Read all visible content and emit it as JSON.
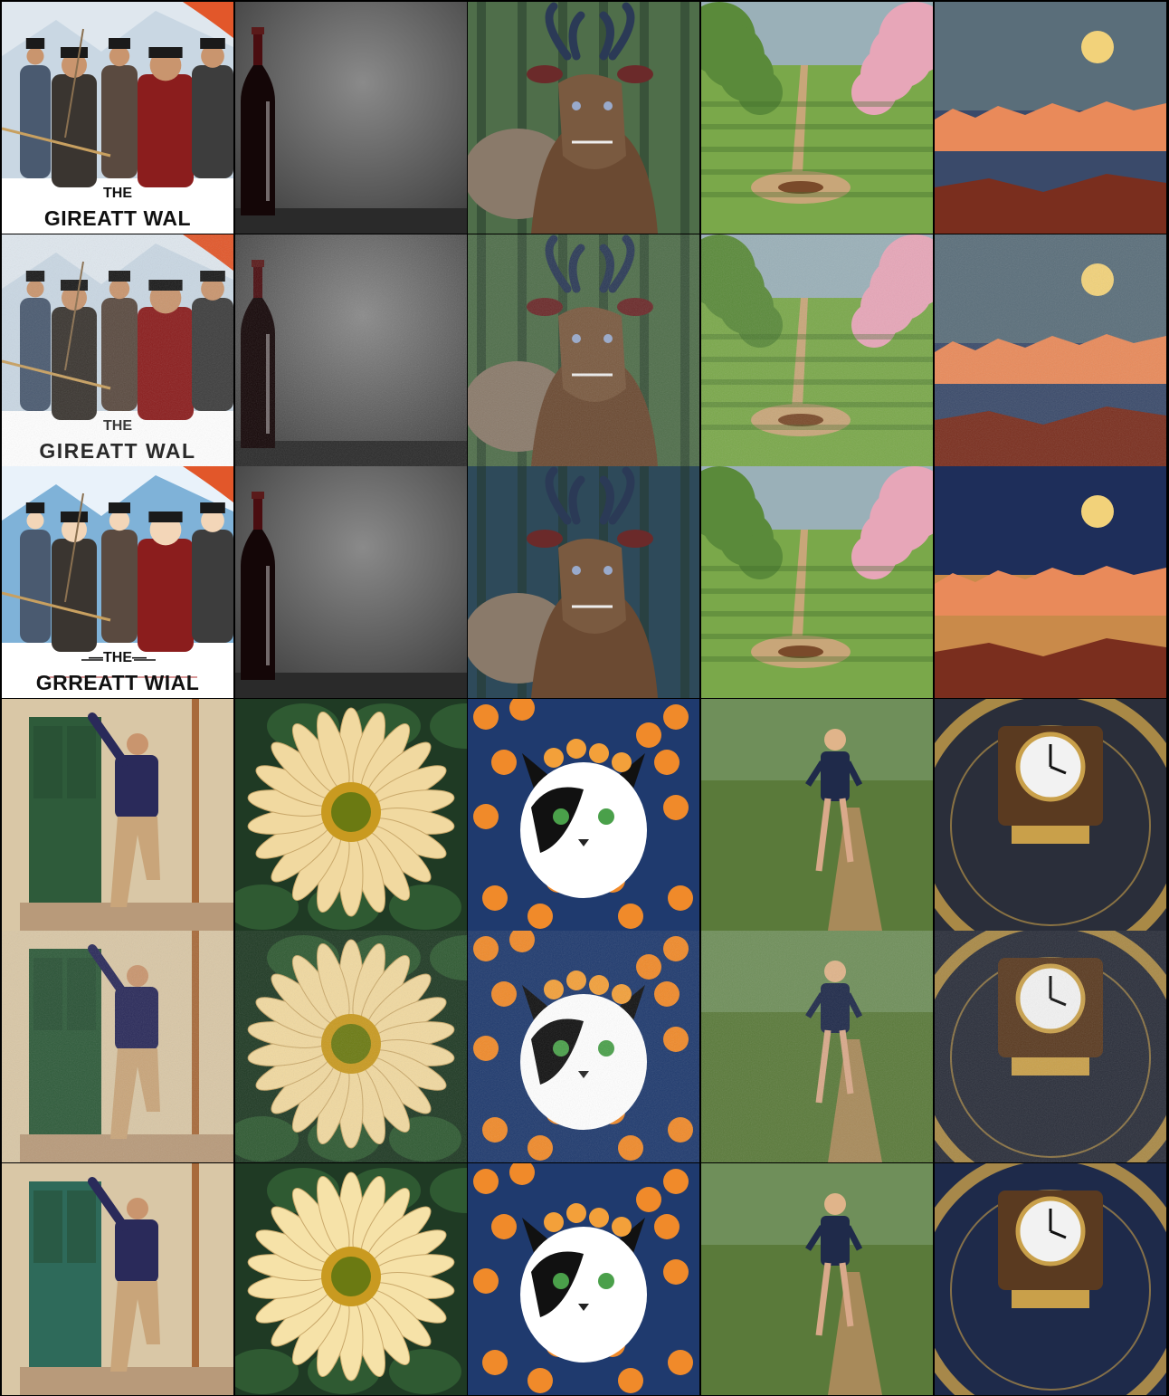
{
  "grid": {
    "rows": 6,
    "cols": 5,
    "background": "#000000"
  },
  "posters": [
    {
      "the": "THE",
      "title": "GIREATT WAL",
      "style": "clean"
    },
    {
      "the": "THE",
      "title": "GIREATT WAL",
      "style": "noisy"
    },
    {
      "the": "—THE—",
      "title": "GRREATT WIAL",
      "style": "anime"
    }
  ],
  "scenes": {
    "warriors-poster": {
      "subject": "armored warriors film poster",
      "palette": [
        "#c9d7e3",
        "#8b1d1d",
        "#2b2b2b",
        "#f2f2f2"
      ]
    },
    "wine-bottle": {
      "subject": "red wine bottle on grey textured background",
      "palette": [
        "#6e6e6e",
        "#3a3a3a",
        "#4a0d10"
      ]
    },
    "horned-creature": {
      "subject": "horned deer dragon creature in forest",
      "palette": [
        "#4f6e4a",
        "#6b4a32",
        "#2b3a56"
      ]
    },
    "orchard-path": {
      "subject": "blossoming orchard with dirt path",
      "palette": [
        "#7aa84a",
        "#e7a6b8",
        "#c8a679"
      ]
    },
    "moon-mountains": {
      "subject": "full moon over sunset mountains",
      "palette": [
        "#5a6e7a",
        "#e98a5a",
        "#7a2e1e",
        "#f2d27a"
      ]
    },
    "man-at-door": {
      "subject": "man posing by green door",
      "palette": [
        "#d9c7a6",
        "#2e5b3a",
        "#2a2a5a",
        "#c9a57a"
      ]
    },
    "daisy-flower": {
      "subject": "pale yellow daisy on dark leaves",
      "palette": [
        "#1f3a24",
        "#f1d9a0",
        "#6b7a12"
      ]
    },
    "flower-cat": {
      "subject": "black and white cat with orange flowers",
      "palette": [
        "#1f3a6e",
        "#f08a2a",
        "#ffffff",
        "#111111"
      ]
    },
    "runner-trail": {
      "subject": "woman jogging on forest trail",
      "palette": [
        "#5a7a3a",
        "#1f2a4a",
        "#a88a5a"
      ]
    },
    "clock-tower": {
      "subject": "ornate clock with golden numerals",
      "palette": [
        "#2a2e3a",
        "#c9a04a",
        "#f2f2f2"
      ]
    }
  }
}
